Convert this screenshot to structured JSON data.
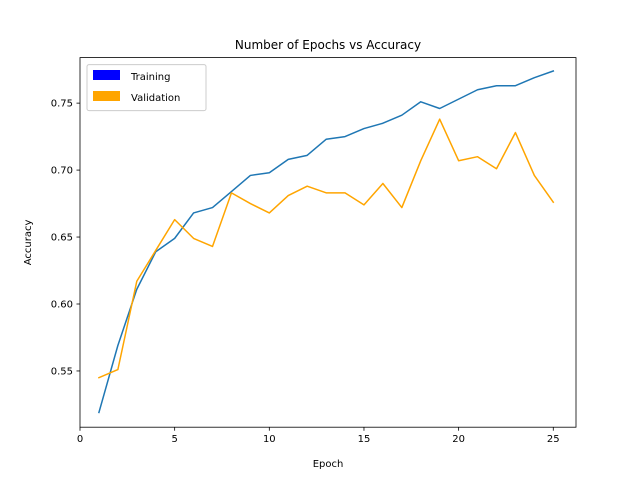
{
  "chart_data": {
    "type": "line",
    "title": "Number of Epochs vs Accuracy",
    "xlabel": "Epoch",
    "ylabel": "Accuracy",
    "xlim": [
      0,
      26.2
    ],
    "ylim": [
      0.508,
      0.784
    ],
    "xticks": [
      0,
      5,
      10,
      15,
      20,
      25
    ],
    "yticks": [
      0.55,
      0.6,
      0.65,
      0.7,
      0.75
    ],
    "grid": false,
    "legend_position": "top-left",
    "legend": [
      {
        "label": "Training",
        "color": "#0000ff"
      },
      {
        "label": "Validation",
        "color": "#ffa500"
      }
    ],
    "x": [
      1,
      2,
      3,
      4,
      5,
      6,
      7,
      8,
      9,
      10,
      11,
      12,
      13,
      14,
      15,
      16,
      17,
      18,
      19,
      20,
      21,
      22,
      23,
      24,
      25
    ],
    "series": [
      {
        "name": "Training",
        "color": "#1f77b4",
        "values": [
          0.519,
          0.569,
          0.611,
          0.639,
          0.649,
          0.668,
          0.672,
          0.684,
          0.696,
          0.698,
          0.708,
          0.711,
          0.723,
          0.725,
          0.731,
          0.735,
          0.741,
          0.751,
          0.746,
          0.753,
          0.76,
          0.763,
          0.763,
          0.769,
          0.774
        ]
      },
      {
        "name": "Validation",
        "color": "#ffa500",
        "values": [
          0.545,
          0.551,
          0.617,
          0.64,
          0.663,
          0.649,
          0.643,
          0.683,
          0.675,
          0.668,
          0.681,
          0.688,
          0.683,
          0.683,
          0.674,
          0.69,
          0.672,
          0.707,
          0.738,
          0.707,
          0.71,
          0.701,
          0.728,
          0.696,
          0.676
        ]
      }
    ]
  }
}
